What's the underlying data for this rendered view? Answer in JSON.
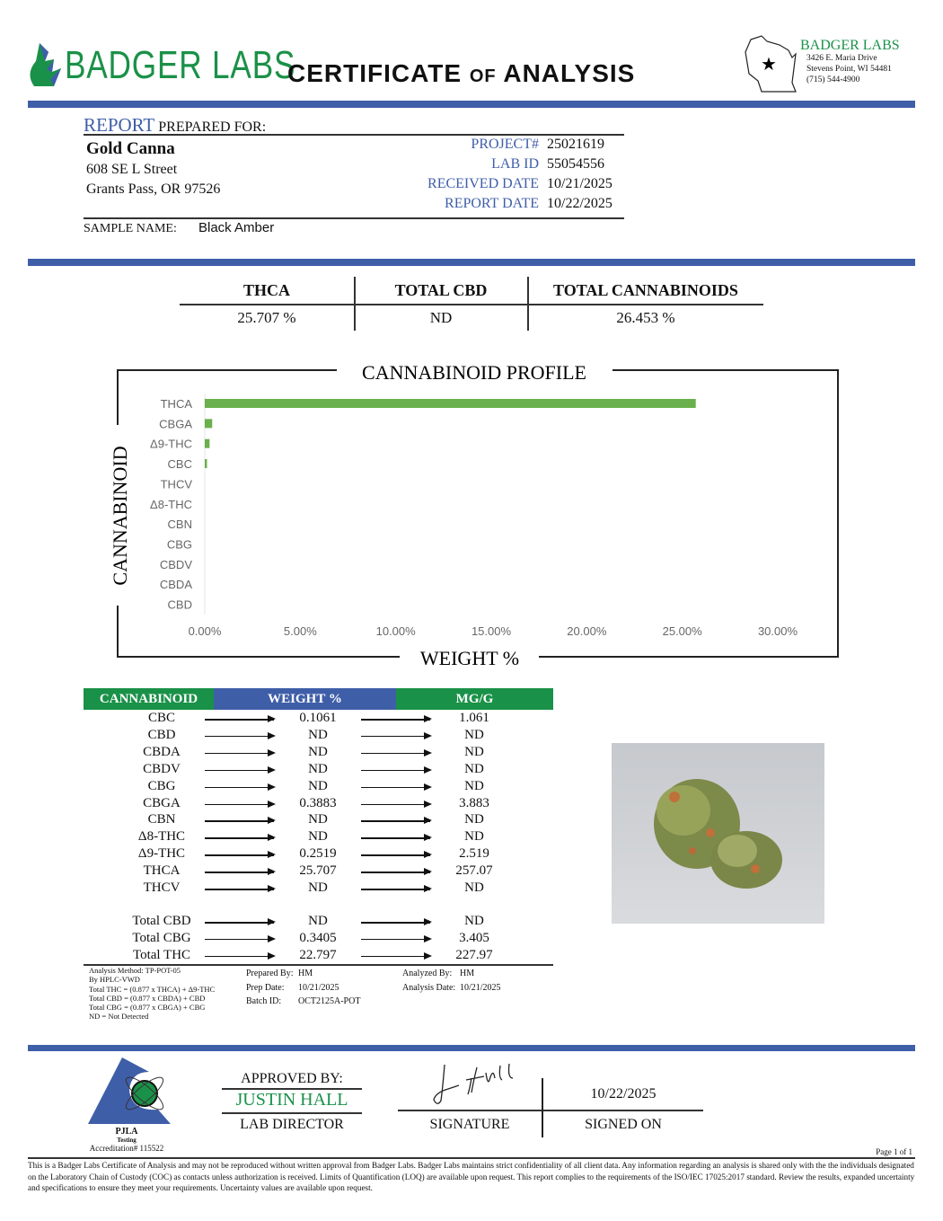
{
  "header": {
    "logo_text": "BADGER LABS",
    "title_a": "CERTIFICATE",
    "title_of": "OF",
    "title_b": "ANALYSIS",
    "lab": {
      "name": "BADGER LABS",
      "address1": "3426 E. Maria Drive",
      "address2": "Stevens Point, WI 54481",
      "phone": "(715) 544-4900"
    }
  },
  "client": {
    "report_word": "REPORT",
    "prepared_for": "PREPARED FOR:",
    "name": "Gold Canna",
    "street": "608 SE L Street",
    "city": "Grants Pass, OR 97526",
    "sample_label": "SAMPLE NAME:",
    "sample_name": "Black Amber"
  },
  "meta": [
    {
      "label": "PROJECT#",
      "value": "25021619"
    },
    {
      "label": "LAB ID",
      "value": "55054556"
    },
    {
      "label": "RECEIVED DATE",
      "value": "10/21/2025"
    },
    {
      "label": "REPORT DATE",
      "value": "10/22/2025"
    }
  ],
  "summary": [
    {
      "label": "THCA",
      "value": "25.707 %"
    },
    {
      "label": "TOTAL CBD",
      "value": "ND"
    },
    {
      "label": "TOTAL CANNABINOIDS",
      "value": "26.453 %"
    }
  ],
  "chart_data": {
    "type": "bar",
    "orientation": "horizontal",
    "title": "CANNABINOID PROFILE",
    "xlabel": "WEIGHT %",
    "ylabel": "CANNABINOID",
    "categories": [
      "THCA",
      "CBGA",
      "Δ9-THC",
      "CBC",
      "THCV",
      "Δ8-THC",
      "CBN",
      "CBG",
      "CBDV",
      "CBDA",
      "CBD"
    ],
    "values": [
      25.707,
      0.3883,
      0.2519,
      0.1061,
      0,
      0,
      0,
      0,
      0,
      0,
      0
    ],
    "xlim": [
      0,
      30
    ],
    "xticks": [
      "0.00%",
      "5.00%",
      "10.00%",
      "15.00%",
      "20.00%",
      "25.00%",
      "30.00%"
    ],
    "color": "#6ab04c",
    "grid": false
  },
  "results": {
    "headers": [
      "CANNABINOID",
      "WEIGHT %",
      "MG/G"
    ],
    "rows": [
      [
        "CBC",
        "0.1061",
        "1.061"
      ],
      [
        "CBD",
        "ND",
        "ND"
      ],
      [
        "CBDA",
        "ND",
        "ND"
      ],
      [
        "CBDV",
        "ND",
        "ND"
      ],
      [
        "CBG",
        "ND",
        "ND"
      ],
      [
        "CBGA",
        "0.3883",
        "3.883"
      ],
      [
        "CBN",
        "ND",
        "ND"
      ],
      [
        "Δ8-THC",
        "ND",
        "ND"
      ],
      [
        "Δ9-THC",
        "0.2519",
        "2.519"
      ],
      [
        "THCA",
        "25.707",
        "257.07"
      ],
      [
        "THCV",
        "ND",
        "ND"
      ]
    ],
    "totals": [
      [
        "Total CBD",
        "ND",
        "ND"
      ],
      [
        "Total CBG",
        "0.3405",
        "3.405"
      ],
      [
        "Total THC",
        "22.797",
        "227.97"
      ]
    ]
  },
  "method": {
    "lines": [
      "Analysis Method: TP-POT-05",
      "By HPLC-VWD",
      "Total THC = (0.877 x  THCA) + Δ9-THC",
      "Total CBD = (0.877 x  CBDA) + CBD",
      "Total CBG = (0.877 x  CBGA) + CBG",
      "ND = Not Detected"
    ],
    "prepared_by_label": "Prepared By:",
    "prepared_by": "HM",
    "prep_date_label": "Prep Date:",
    "prep_date": "10/21/2025",
    "batch_label": "Batch ID:",
    "batch": "OCT2125A-POT",
    "analyzed_by_label": "Analyzed By:",
    "analyzed_by": "HM",
    "analysis_date_label": "Analysis Date:",
    "analysis_date": "10/21/2025"
  },
  "approval": {
    "pjla": "PJLA",
    "testing": "Testing",
    "accreditation": "Accreditation# 115522",
    "approved_by": "APPROVED BY:",
    "name": "JUSTIN HALL",
    "role": "LAB DIRECTOR",
    "signature_label": "SIGNATURE",
    "signed_date": "10/22/2025",
    "signed_on_label": "SIGNED ON",
    "signature_text": "J Hall"
  },
  "footer": {
    "page": "Page 1 of 1",
    "disclaimer": "This is a Badger Labs Certificate of Analysis and may not be reproduced without written approval from Badger Labs. Badger Labs maintains strict confidentiality of all client data. Any information regarding an analysis is shared only with the the individuals designated on the Laboratory Chain of Custody (COC) as contacts unless authorization is received. Limits of Quantification (LOQ) are available upon request. This report complies to the requirements of the ISO/IEC 17025:2017 standard. Review the results, expanded uncertainty and specifications to ensure they meet your requirements. Uncertainty values are available upon request."
  },
  "colors": {
    "blue": "#3f5ea8",
    "green": "#1a9148",
    "bar": "#6ab04c"
  }
}
